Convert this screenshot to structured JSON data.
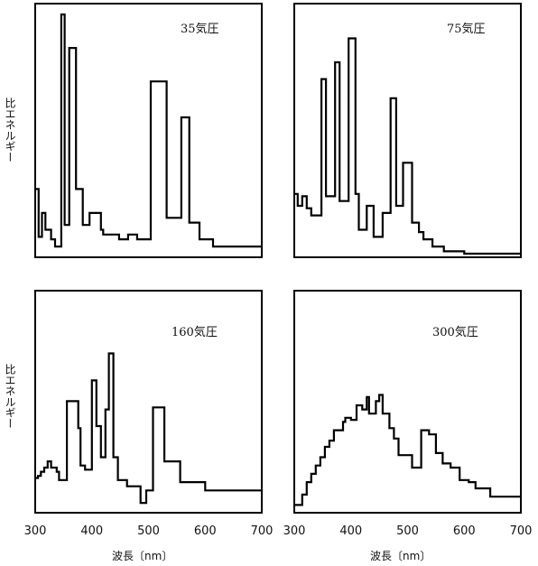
{
  "y_axis_label": "比エネルギー",
  "x_axis_label": "波長〔nm〕",
  "chart_data": [
    {
      "type": "line",
      "title": "35気圧",
      "xlabel": "",
      "ylabel": "比エネルギー",
      "xlim": [
        300,
        700
      ],
      "ylim": [
        0,
        100
      ],
      "x_ticks": [],
      "grid": false,
      "x": [
        300,
        306,
        306,
        312,
        312,
        318,
        318,
        328,
        328,
        335,
        335,
        346,
        346,
        352,
        352,
        360,
        360,
        372,
        372,
        384,
        384,
        396,
        396,
        416,
        416,
        420,
        420,
        448,
        448,
        464,
        464,
        480,
        480,
        504,
        504,
        532,
        532,
        558,
        558,
        572,
        572,
        590,
        590,
        614,
        614,
        700
      ],
      "y": [
        27,
        27,
        7,
        7,
        17,
        17,
        10,
        10,
        6,
        6,
        3,
        3,
        100,
        100,
        12,
        12,
        86,
        86,
        27,
        27,
        12,
        12,
        17,
        17,
        10,
        10,
        8,
        8,
        6,
        6,
        8,
        8,
        6,
        6,
        72,
        72,
        15,
        15,
        57,
        57,
        13,
        13,
        6,
        6,
        3,
        3
      ]
    },
    {
      "type": "line",
      "title": "75気圧",
      "xlabel": "",
      "ylabel": "",
      "xlim": [
        300,
        700
      ],
      "ylim": [
        0,
        100
      ],
      "x_ticks": [],
      "grid": false,
      "x": [
        300,
        306,
        306,
        314,
        314,
        322,
        322,
        330,
        330,
        348,
        348,
        356,
        356,
        372,
        372,
        380,
        380,
        396,
        396,
        408,
        408,
        414,
        414,
        428,
        428,
        440,
        440,
        456,
        456,
        470,
        470,
        480,
        480,
        492,
        492,
        508,
        508,
        520,
        520,
        528,
        528,
        544,
        544,
        564,
        564,
        600,
        600,
        700
      ],
      "y": [
        25,
        25,
        20,
        20,
        24,
        24,
        19,
        19,
        16,
        16,
        73,
        73,
        24,
        24,
        80,
        80,
        22,
        22,
        90,
        90,
        25,
        25,
        10,
        10,
        20,
        20,
        7,
        7,
        17,
        17,
        65,
        65,
        20,
        20,
        38,
        38,
        13,
        13,
        9,
        9,
        6,
        6,
        3,
        3,
        1,
        1,
        0,
        0
      ]
    },
    {
      "type": "line",
      "title": "160気圧",
      "xlabel": "波長〔nm〕",
      "ylabel": "比エネルギー",
      "xlim": [
        300,
        700
      ],
      "ylim": [
        0,
        100
      ],
      "x_ticks": [
        300,
        400,
        500,
        600,
        700
      ],
      "grid": false,
      "x": [
        300,
        305,
        305,
        310,
        310,
        316,
        316,
        322,
        322,
        328,
        328,
        338,
        338,
        342,
        342,
        356,
        356,
        376,
        376,
        380,
        380,
        388,
        388,
        400,
        400,
        408,
        408,
        416,
        416,
        424,
        424,
        430,
        430,
        438,
        438,
        446,
        446,
        462,
        462,
        486,
        486,
        496,
        496,
        508,
        508,
        528,
        528,
        556,
        556,
        600,
        600,
        700
      ],
      "y": [
        15,
        15,
        16,
        16,
        18,
        18,
        20,
        20,
        23,
        23,
        20,
        20,
        18,
        18,
        14,
        14,
        52,
        52,
        39,
        39,
        21,
        21,
        19,
        19,
        62,
        62,
        40,
        40,
        25,
        25,
        48,
        48,
        75,
        75,
        25,
        25,
        14,
        14,
        11,
        11,
        3,
        3,
        9,
        9,
        49,
        49,
        23,
        23,
        13,
        13,
        9,
        9
      ]
    },
    {
      "type": "line",
      "title": "300気圧",
      "xlabel": "波長〔nm〕",
      "ylabel": "",
      "xlim": [
        300,
        700
      ],
      "ylim": [
        0,
        100
      ],
      "x_ticks": [
        300,
        400,
        500,
        600,
        700
      ],
      "grid": false,
      "x": [
        300,
        314,
        314,
        322,
        322,
        330,
        330,
        338,
        338,
        346,
        346,
        354,
        354,
        362,
        362,
        370,
        370,
        386,
        386,
        390,
        390,
        400,
        400,
        410,
        410,
        420,
        420,
        428,
        428,
        432,
        432,
        444,
        444,
        450,
        450,
        456,
        456,
        468,
        468,
        476,
        476,
        484,
        484,
        508,
        508,
        524,
        524,
        538,
        538,
        550,
        550,
        562,
        562,
        576,
        576,
        592,
        592,
        608,
        608,
        620,
        620,
        646,
        646,
        700
      ],
      "y": [
        2,
        2,
        7,
        7,
        13,
        13,
        17,
        17,
        21,
        21,
        25,
        25,
        30,
        30,
        33,
        33,
        38,
        38,
        42,
        42,
        44,
        44,
        43,
        43,
        50,
        50,
        48,
        48,
        54,
        54,
        46,
        46,
        52,
        52,
        55,
        55,
        46,
        46,
        39,
        39,
        34,
        34,
        26,
        26,
        20,
        20,
        38,
        38,
        36,
        36,
        27,
        27,
        22,
        22,
        20,
        20,
        14,
        14,
        13,
        13,
        10,
        10,
        6,
        6
      ]
    }
  ]
}
